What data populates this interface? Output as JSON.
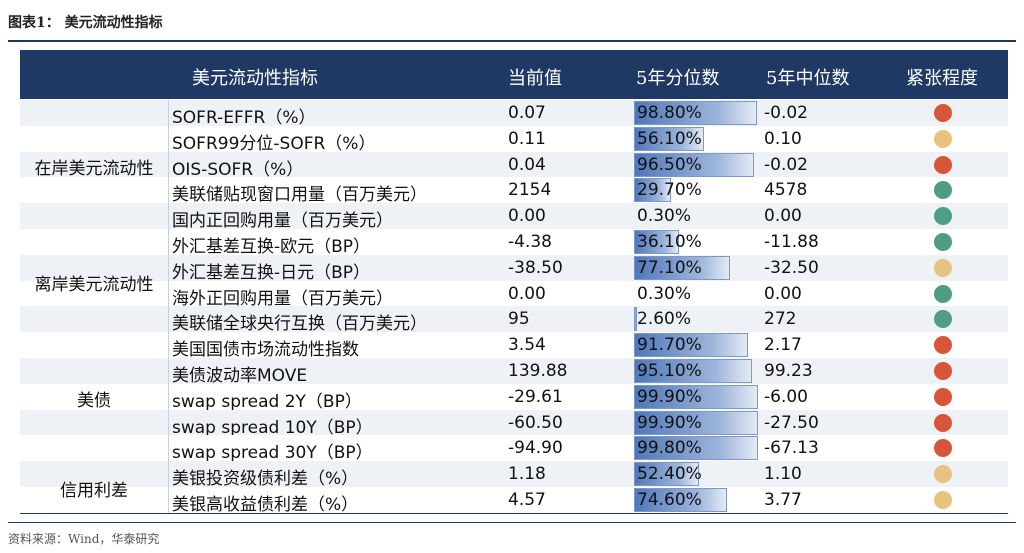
{
  "figure_title": "图表1：  美元流动性指标",
  "header": {
    "indicator": "美元流动性指标",
    "current": "当前值",
    "percentile": "5年分位数",
    "median": "5年中位数",
    "tension": "紧张程度"
  },
  "colors": {
    "header_bg": "#1f3864",
    "red": "#d9553a",
    "yellow": "#e8c27f",
    "green": "#4f9e83"
  },
  "groups": [
    {
      "label": "在岸美元流动性",
      "rows": [
        {
          "name": "SOFR-EFFR（%）",
          "current": "0.07",
          "percentile": "98.80%",
          "pct_value": 98.8,
          "median": "-0.02",
          "tension": "red"
        },
        {
          "name": "SOFR99分位-SOFR（%）",
          "current": "0.11",
          "percentile": "56.10%",
          "pct_value": 56.1,
          "median": "0.10",
          "tension": "yellow"
        },
        {
          "name": "OIS-SOFR（%）",
          "current": "0.04",
          "percentile": "96.50%",
          "pct_value": 96.5,
          "median": "-0.02",
          "tension": "red"
        },
        {
          "name": "美联储贴现窗口用量（百万美元）",
          "current": "2154",
          "percentile": "29.70%",
          "pct_value": 29.7,
          "median": "4578",
          "tension": "green"
        },
        {
          "name": "国内正回购用量（百万美元）",
          "current": "0.00",
          "percentile": "0.30%",
          "pct_value": 0.3,
          "median": "0.00",
          "tension": "green"
        }
      ]
    },
    {
      "label": "离岸美元流动性",
      "rows": [
        {
          "name": "外汇基差互换-欧元（BP）",
          "current": "-4.38",
          "percentile": "36.10%",
          "pct_value": 36.1,
          "median": "-11.88",
          "tension": "green"
        },
        {
          "name": "外汇基差互换-日元（BP）",
          "current": "-38.50",
          "percentile": "77.10%",
          "pct_value": 77.1,
          "median": "-32.50",
          "tension": "yellow"
        },
        {
          "name": "海外正回购用量（百万美元）",
          "current": "0.00",
          "percentile": "0.30%",
          "pct_value": 0.3,
          "median": "0.00",
          "tension": "green"
        },
        {
          "name": "美联储全球央行互换（百万美元）",
          "current": "95",
          "percentile": "2.60%",
          "pct_value": 2.6,
          "median": "272",
          "tension": "green"
        }
      ]
    },
    {
      "label": "美债",
      "rows": [
        {
          "name": "美国国债市场流动性指数",
          "current": "3.54",
          "percentile": "91.70%",
          "pct_value": 91.7,
          "median": "2.17",
          "tension": "red"
        },
        {
          "name": "美债波动率MOVE",
          "current": "139.88",
          "percentile": "95.10%",
          "pct_value": 95.1,
          "median": "99.23",
          "tension": "red"
        },
        {
          "name": "swap spread 2Y（BP）",
          "current": "-29.61",
          "percentile": "99.90%",
          "pct_value": 99.9,
          "median": "-6.00",
          "tension": "red"
        },
        {
          "name": "swap spread 10Y（BP）",
          "current": "-60.50",
          "percentile": "99.90%",
          "pct_value": 99.9,
          "median": "-27.50",
          "tension": "red"
        },
        {
          "name": "swap spread 30Y（BP）",
          "current": "-94.90",
          "percentile": "99.80%",
          "pct_value": 99.8,
          "median": "-67.13",
          "tension": "red"
        }
      ]
    },
    {
      "label": "信用利差",
      "rows": [
        {
          "name": "美银投资级债利差（%）",
          "current": "1.18",
          "percentile": "52.40%",
          "pct_value": 52.4,
          "median": "1.10",
          "tension": "yellow"
        },
        {
          "name": "美银高收益债利差（%）",
          "current": "4.57",
          "percentile": "74.60%",
          "pct_value": 74.6,
          "median": "3.77",
          "tension": "yellow"
        }
      ]
    }
  ],
  "source": "资料来源：Wind，华泰研究"
}
